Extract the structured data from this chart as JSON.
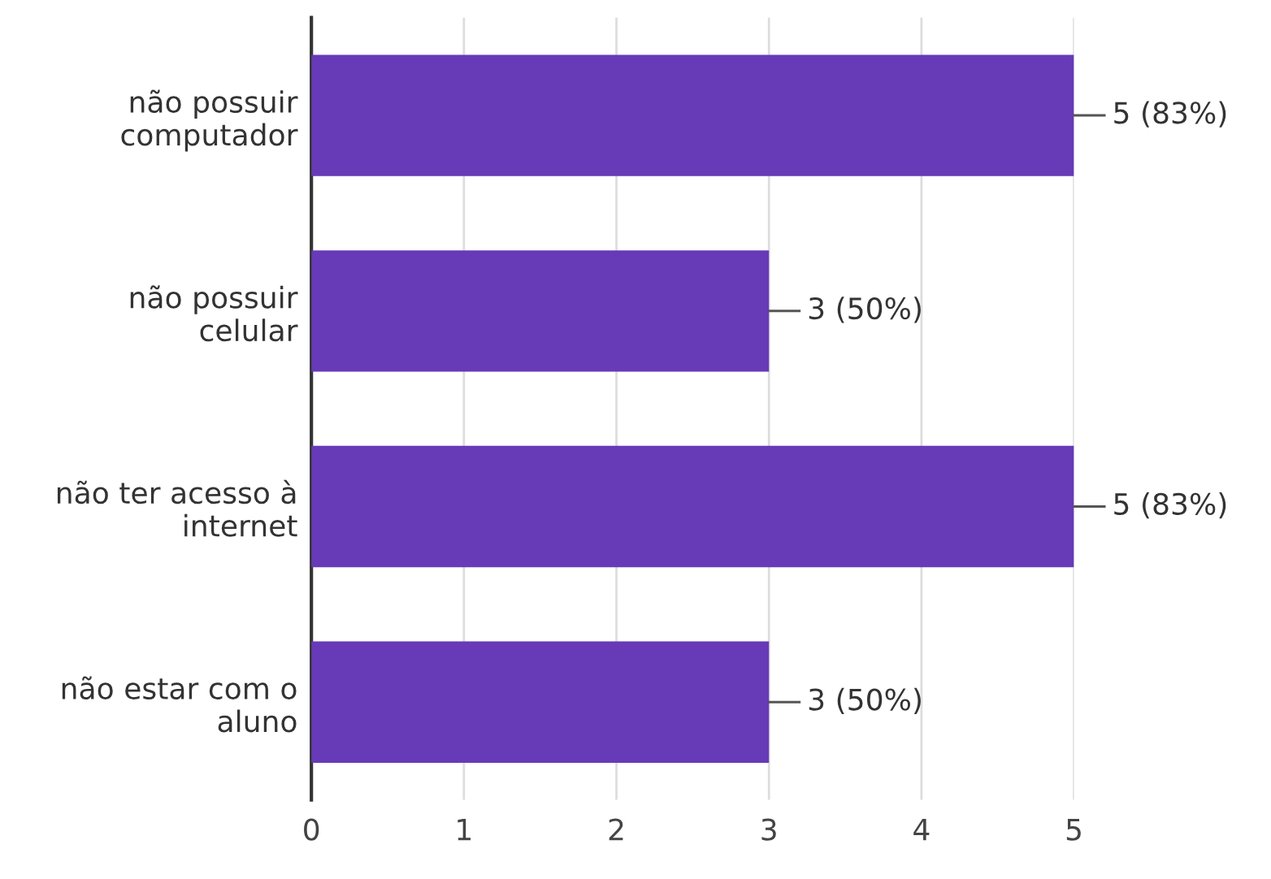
{
  "chart_data": {
    "type": "bar",
    "orientation": "horizontal",
    "categories": [
      "não possuir\ncomputador",
      "não possuir\ncelular",
      "não ter acesso à\ninternet",
      "não estar com o\naluno"
    ],
    "values": [
      5,
      3,
      5,
      3
    ],
    "color": "#673ab7",
    "value_labels": [
      "5 (83%)",
      "3 (50%)",
      "5 (83%)",
      "3 (50%)"
    ],
    "xlim": [
      0,
      5
    ],
    "xticks": [
      0,
      1,
      2,
      3,
      4,
      5
    ],
    "grid": "x"
  }
}
